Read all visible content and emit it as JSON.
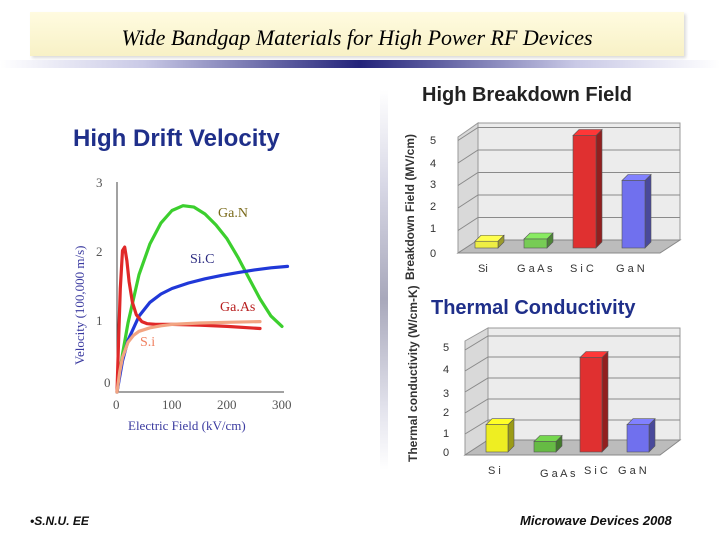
{
  "slide": {
    "title": "Wide Bandgap Materials for High Power RF Devices",
    "footer_left": "•S.N.U. EE",
    "footer_right": "Microwave Devices 2008"
  },
  "chart_data": [
    {
      "type": "line",
      "title": "High Drift Velocity",
      "xlabel": "Electric Field (kV/cm)",
      "ylabel": "Velocity (100,000 m/s)",
      "xlim": [
        0,
        300
      ],
      "ylim": [
        0,
        3
      ],
      "xticks": [
        "0",
        "100",
        "200",
        "300"
      ],
      "yticks": [
        "0",
        "1",
        "2",
        "3"
      ],
      "series": [
        {
          "name": "GaN",
          "label": "Ga.N",
          "color": "#3ccf2e",
          "x": [
            0,
            10,
            20,
            40,
            60,
            80,
            100,
            120,
            140,
            160,
            180,
            200,
            220,
            240,
            260,
            280,
            300
          ],
          "y": [
            0,
            0.55,
            1.0,
            1.7,
            2.15,
            2.45,
            2.63,
            2.7,
            2.68,
            2.58,
            2.42,
            2.22,
            1.95,
            1.65,
            1.35,
            1.1,
            0.95
          ]
        },
        {
          "name": "SiC",
          "label": "Si.C",
          "color": "#2038d8",
          "x": [
            0,
            10,
            20,
            40,
            60,
            80,
            100,
            130,
            160,
            190,
            220,
            250,
            280,
            310
          ],
          "y": [
            0,
            0.45,
            0.75,
            1.1,
            1.3,
            1.42,
            1.5,
            1.58,
            1.64,
            1.69,
            1.73,
            1.77,
            1.8,
            1.82
          ]
        },
        {
          "name": "GaAs",
          "label": "Ga.As",
          "color": "#e02828",
          "x": [
            0,
            3,
            6,
            10,
            14,
            18,
            22,
            28,
            35,
            45,
            55,
            70,
            100,
            150,
            200,
            260
          ],
          "y": [
            0,
            0.8,
            1.5,
            2.05,
            2.1,
            1.9,
            1.6,
            1.3,
            1.12,
            1.02,
            0.99,
            0.98,
            0.98,
            0.97,
            0.95,
            0.92
          ]
        },
        {
          "name": "Si",
          "label": "S.i",
          "color": "#f2a482",
          "x": [
            0,
            5,
            10,
            20,
            30,
            40,
            60,
            80,
            100,
            150,
            200,
            260
          ],
          "y": [
            0,
            0.3,
            0.5,
            0.72,
            0.82,
            0.88,
            0.93,
            0.96,
            0.98,
            1.0,
            1.01,
            1.02
          ]
        }
      ]
    },
    {
      "type": "bar",
      "title": "High Breakdown Field",
      "ylabel": "Breakdown Field (MV/cm)",
      "categories": [
        "Si",
        "GaAs",
        "SiC",
        "GaN"
      ],
      "category_labels": [
        "Si",
        "G a A s",
        "S i C",
        "G a N"
      ],
      "values": [
        0.3,
        0.4,
        5.0,
        3.0
      ],
      "ylim": [
        0,
        5
      ],
      "yticks": [
        "0",
        "1",
        "2",
        "3",
        "4",
        "5"
      ],
      "colors": [
        "#eeee44",
        "#77cc55",
        "#e03030",
        "#7070ee"
      ]
    },
    {
      "type": "bar",
      "title": "Thermal Conductivity",
      "ylabel": "Thermal conductivity (W/cm-K)",
      "categories": [
        "Si",
        "GaAs",
        "SiC",
        "GaN"
      ],
      "category_labels": [
        "S i",
        "G a A s",
        "S i C",
        "G a N"
      ],
      "values": [
        1.3,
        0.5,
        4.5,
        1.3
      ],
      "ylim": [
        0,
        5
      ],
      "yticks": [
        "0",
        "1",
        "2",
        "3",
        "4",
        "5"
      ],
      "colors": [
        "#eeee22",
        "#66bb44",
        "#e03030",
        "#7070ee"
      ]
    }
  ]
}
